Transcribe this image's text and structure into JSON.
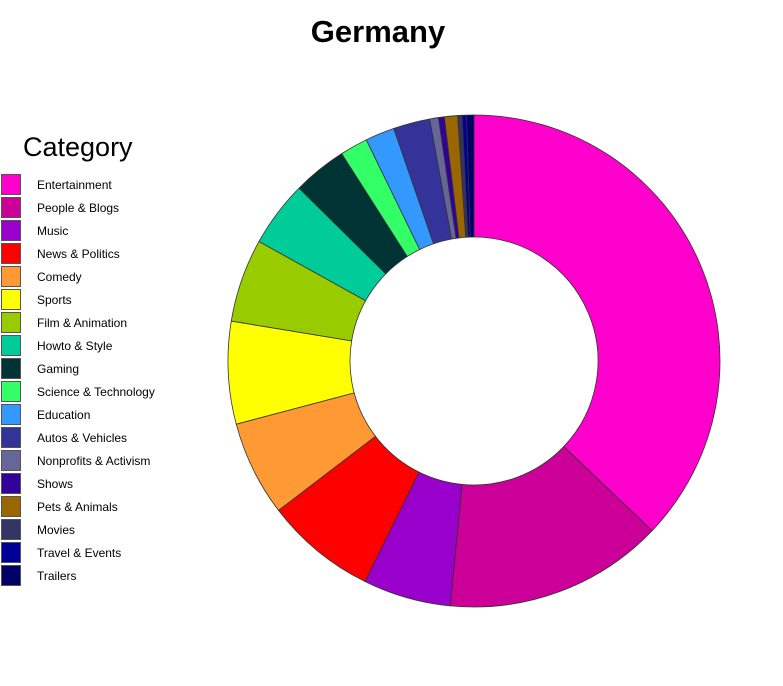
{
  "chart_data": {
    "type": "pie",
    "subtype": "donut",
    "title": "Germany",
    "legend": {
      "title": "Category",
      "position": "left"
    },
    "slices": [
      {
        "label": "Entertainment",
        "value": 38.6,
        "color": "#ff00cc"
      },
      {
        "label": "People & Blogs",
        "value": 15.0,
        "color": "#cc0099"
      },
      {
        "label": "Music",
        "value": 6.0,
        "color": "#9900cc"
      },
      {
        "label": "News & Politics",
        "value": 7.6,
        "color": "#ff0000"
      },
      {
        "label": "Comedy",
        "value": 6.5,
        "color": "#ff9933"
      },
      {
        "label": "Sports",
        "value": 7.0,
        "color": "#ffff00"
      },
      {
        "label": "Film & Animation",
        "value": 5.7,
        "color": "#99cc00"
      },
      {
        "label": "Howto & Style",
        "value": 4.5,
        "color": "#00cc99"
      },
      {
        "label": "Gaming",
        "value": 3.7,
        "color": "#003333"
      },
      {
        "label": "Science & Technology",
        "value": 1.9,
        "color": "#33ff66"
      },
      {
        "label": "Education",
        "value": 2.0,
        "color": "#3399ff"
      },
      {
        "label": "Autos & Vehicles",
        "value": 2.5,
        "color": "#333399"
      },
      {
        "label": "Nonprofits & Activism",
        "value": 0.6,
        "color": "#666699"
      },
      {
        "label": "Shows",
        "value": 0.4,
        "color": "#330099"
      },
      {
        "label": "Pets & Animals",
        "value": 0.9,
        "color": "#996600"
      },
      {
        "label": "Movies",
        "value": 0.3,
        "color": "#333366"
      },
      {
        "label": "Travel & Events",
        "value": 0.3,
        "color": "#000099"
      },
      {
        "label": "Trailers",
        "value": 0.5,
        "color": "#000066"
      }
    ]
  }
}
